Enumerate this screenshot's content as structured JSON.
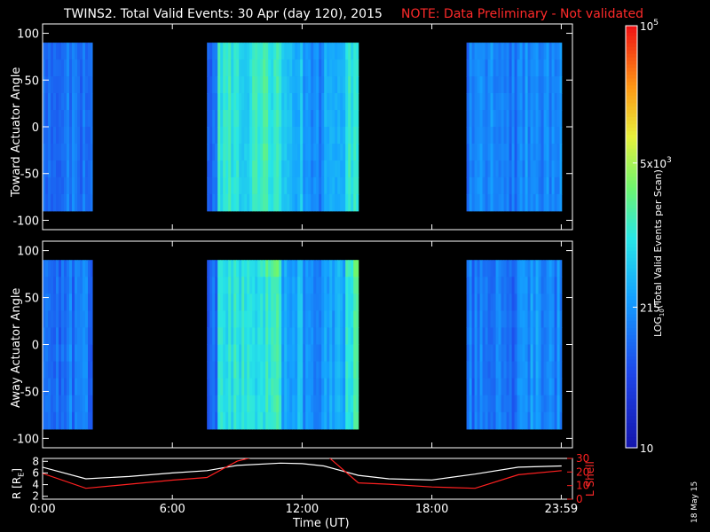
{
  "header": {
    "title": "TWINS2. Total Valid Events: 30 Apr (day 120), 2015",
    "note": "NOTE: Data Preliminary - Not validated",
    "note_color": "#ff2020"
  },
  "footer": {
    "date_stamp": "18 May 15"
  },
  "chart_data": [
    {
      "type": "heatmap",
      "name": "toward",
      "ylabel": "Toward Actuator Angle",
      "yticks": [
        "100",
        "50",
        "0",
        "-50",
        "-100"
      ],
      "ylim": [
        -110,
        110
      ],
      "angle_range": [
        -90,
        90
      ],
      "data_intervals_hours": [
        [
          0.0,
          2.3
        ],
        [
          7.6,
          14.6
        ],
        [
          19.6,
          24.0
        ]
      ],
      "coarse_hourly_log_counts": [
        2.0,
        2.1,
        2.0,
        2.0,
        2.1,
        2.0,
        2.0,
        2.0,
        3.0,
        3.0,
        3.1,
        2.6,
        2.2,
        2.5,
        3.1,
        2.2,
        2.0,
        2.0,
        2.0,
        2.1,
        2.2,
        2.1,
        2.3,
        2.2
      ],
      "notes": "gray/black regions indicate no data"
    },
    {
      "type": "heatmap",
      "name": "away",
      "ylabel": "Away Actuator Angle",
      "yticks": [
        "100",
        "50",
        "0",
        "-50",
        "-100"
      ],
      "ylim": [
        -110,
        110
      ],
      "angle_range": [
        -90,
        90
      ],
      "data_intervals_hours": [
        [
          0.0,
          2.3
        ],
        [
          7.6,
          14.6
        ],
        [
          19.6,
          24.0
        ]
      ]
    },
    {
      "type": "line",
      "name": "ephemeris",
      "x": [
        0,
        2,
        4,
        6,
        7.6,
        9,
        11,
        12,
        13,
        14.6,
        16,
        18,
        20,
        22,
        24
      ],
      "series": [
        {
          "axis": "left",
          "values": [
            7.0,
            5.0,
            5.4,
            6.0,
            6.4,
            7.3,
            7.7,
            7.6,
            7.2,
            5.6,
            5.0,
            4.8,
            5.8,
            7.0,
            7.2
          ]
        },
        {
          "axis": "right",
          "values": [
            19,
            8,
            11,
            14,
            16,
            28,
            36,
            36,
            34,
            12,
            11,
            9,
            8,
            18,
            21
          ]
        }
      ],
      "ylabel_left": "R [R",
      "ylabel_left_sub": "E",
      "ylabel_left_end": "]",
      "yticks_left": [
        "2",
        "4",
        "6",
        "8"
      ],
      "ylim_left": [
        1.5,
        8.5
      ],
      "ylabel_right": "L Shell",
      "yticks_right": [
        "0",
        "10",
        "20",
        "30"
      ],
      "ylim_right": [
        0,
        30
      ],
      "xlabel": "Time (UT)",
      "xticks": [
        {
          "t": 0,
          "label": "0:00"
        },
        {
          "t": 6,
          "label": "6:00"
        },
        {
          "t": 12,
          "label": "12:00"
        },
        {
          "t": 18,
          "label": "18:00"
        },
        {
          "t": 23.983,
          "label": "23:59"
        }
      ],
      "xlim": [
        0,
        24.5
      ]
    }
  ],
  "colorbar": {
    "label": "LOG",
    "label_sub": "10",
    "label_rest": "(Total Valid Events per Scan)",
    "ticks": [
      {
        "value": 100000,
        "base": "10",
        "exp": "5"
      },
      {
        "value": 5000,
        "base": "5x10",
        "exp": "3"
      },
      {
        "value": 215,
        "base": "215",
        "exp": ""
      },
      {
        "value": 10,
        "base": "10",
        "exp": ""
      }
    ],
    "range": [
      10,
      100000
    ],
    "scale": "log"
  }
}
